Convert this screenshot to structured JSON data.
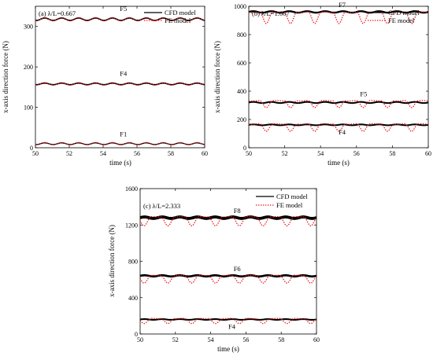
{
  "figure": {
    "legend": {
      "cfd_label": "CFD model",
      "fe_label": "FE model"
    },
    "colors": {
      "cfd": "#000000",
      "fe": "#e8141a"
    }
  },
  "chart_data": [
    {
      "id": "a",
      "type": "line",
      "title": "(a) λ/L=0.667",
      "xlabel": "time (s)",
      "ylabel": "x-axis direction force (N)",
      "xlim": [
        50,
        60
      ],
      "ylim": [
        0,
        350
      ],
      "xticks": [
        50,
        52,
        54,
        56,
        58,
        60
      ],
      "yticks": [
        0,
        100,
        200,
        300
      ],
      "legend_position": "top-right",
      "grid": false,
      "series": [
        {
          "name": "CFD model",
          "style": "solid",
          "curves": [
            {
              "label": "F5",
              "mean": 318,
              "amp": 3,
              "period": 1.0,
              "phase": 0.3,
              "band": 2
            },
            {
              "label": "F4",
              "mean": 158,
              "amp": 2,
              "period": 1.0,
              "phase": 0.3,
              "band": 2
            },
            {
              "label": "F1",
              "mean": 10,
              "amp": 2,
              "period": 1.0,
              "phase": 0.3,
              "band": 1
            }
          ]
        },
        {
          "name": "FE model",
          "style": "dotted",
          "curves": [
            {
              "label": "F5",
              "mean": 318,
              "amp": 4,
              "period": 1.0,
              "phase": 0.3
            },
            {
              "label": "F4",
              "mean": 158,
              "amp": 3,
              "period": 1.0,
              "phase": 0.3
            },
            {
              "label": "F1",
              "mean": 10,
              "amp": 3,
              "period": 1.0,
              "phase": 0.3
            }
          ]
        }
      ],
      "annotations": [
        {
          "text": "F5",
          "x": 55.2,
          "y": 338
        },
        {
          "text": "F4",
          "x": 55.2,
          "y": 178
        },
        {
          "text": "F1",
          "x": 55.2,
          "y": 28
        }
      ]
    },
    {
      "id": "b",
      "type": "line",
      "title": "(b) λ/L=1.667",
      "xlabel": "time (s)",
      "ylabel": "x-axis direction force (N)",
      "xlim": [
        50,
        60
      ],
      "ylim": [
        0,
        1000
      ],
      "xticks": [
        50,
        52,
        54,
        56,
        58,
        60
      ],
      "yticks": [
        0,
        200,
        400,
        600,
        800,
        1000
      ],
      "legend_position": "top-right",
      "grid": false,
      "series": [
        {
          "name": "CFD model",
          "style": "solid",
          "curves": [
            {
              "label": "F7",
              "mean": 960,
              "amp": 5,
              "period": 1.0,
              "phase": 0.0,
              "band": 4
            },
            {
              "label": "F5",
              "mean": 320,
              "amp": 4,
              "period": 1.0,
              "phase": 0.0,
              "band": 3
            },
            {
              "label": "F4",
              "mean": 162,
              "amp": 3,
              "period": 1.0,
              "phase": 0.0,
              "band": 3
            }
          ]
        },
        {
          "name": "FE model",
          "style": "dotted",
          "curves": [
            {
              "label": "F7",
              "shape": "dips",
              "base": 958,
              "depth": 80,
              "period": 1.35,
              "start": 50.3,
              "width": 0.35
            },
            {
              "label": "F5",
              "shape": "dips",
              "base": 332,
              "depth": 48,
              "period": 1.35,
              "start": 50.3,
              "width": 0.35
            },
            {
              "label": "F4",
              "shape": "dips",
              "base": 168,
              "depth": 52,
              "period": 1.35,
              "start": 50.3,
              "width": 0.35
            }
          ]
        }
      ],
      "annotations": [
        {
          "text": "F7",
          "x": 55.2,
          "y": 995
        },
        {
          "text": "F5",
          "x": 56.4,
          "y": 365
        },
        {
          "text": "F4",
          "x": 55.2,
          "y": 95
        }
      ]
    },
    {
      "id": "c",
      "type": "line",
      "title": "(c) λ/L=2.333",
      "xlabel": "time (s)",
      "ylabel": "x-axis direction force (N)",
      "xlim": [
        50,
        60
      ],
      "ylim": [
        0,
        1600
      ],
      "xticks": [
        50,
        52,
        54,
        56,
        58,
        60
      ],
      "yticks": [
        0,
        400,
        800,
        1200,
        1600
      ],
      "legend_position": "top-right",
      "grid": false,
      "series": [
        {
          "name": "CFD model",
          "style": "solid",
          "curves": [
            {
              "label": "F8",
              "mean": 1280,
              "amp": 8,
              "period": 1.0,
              "phase": 0.0,
              "band": 8
            },
            {
              "label": "F6",
              "mean": 640,
              "amp": 6,
              "period": 1.0,
              "phase": 0.0,
              "band": 5
            },
            {
              "label": "F4",
              "mean": 160,
              "amp": 4,
              "period": 1.0,
              "phase": 0.0,
              "band": 3
            }
          ]
        },
        {
          "name": "FE model",
          "style": "dotted",
          "curves": [
            {
              "label": "F8",
              "shape": "dips",
              "base": 1290,
              "depth": 100,
              "period": 1.35,
              "start": 50.9,
              "width": 0.4
            },
            {
              "label": "F6",
              "shape": "dips",
              "base": 645,
              "depth": 85,
              "period": 1.35,
              "start": 50.9,
              "width": 0.4
            },
            {
              "label": "F4",
              "shape": "dips",
              "base": 170,
              "depth": 55,
              "period": 1.35,
              "start": 50.9,
              "width": 0.4
            }
          ]
        }
      ],
      "annotations": [
        {
          "text": "F8",
          "x": 55.5,
          "y": 1330
        },
        {
          "text": "F6",
          "x": 55.5,
          "y": 690
        },
        {
          "text": "F4",
          "x": 55.2,
          "y": 55
        }
      ]
    }
  ]
}
